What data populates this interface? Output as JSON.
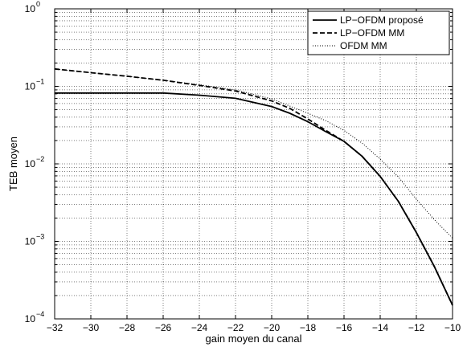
{
  "chart_data": {
    "type": "line",
    "xlabel": "gain moyen du canal",
    "ylabel": "TEB moyen",
    "xlim": [
      -32,
      -10
    ],
    "ylim": [
      0.0001,
      1
    ],
    "yscale": "log",
    "grid": true,
    "minor_grid": true,
    "legend_position": "top-right",
    "x_ticks": [
      -32,
      -30,
      -28,
      -26,
      -24,
      -22,
      -20,
      -18,
      -16,
      -14,
      -12,
      -10
    ],
    "x_tick_labels": [
      "−32",
      "−30",
      "−28",
      "−26",
      "−24",
      "−22",
      "−20",
      "−18",
      "−16",
      "−14",
      "−12",
      "−10"
    ],
    "y_ticks": [
      0.0001,
      0.001,
      0.01,
      0.1,
      1
    ],
    "y_tick_labels": [
      {
        "base": "10",
        "exp": "−4"
      },
      {
        "base": "10",
        "exp": "−3"
      },
      {
        "base": "10",
        "exp": "−2"
      },
      {
        "base": "10",
        "exp": "−1"
      },
      {
        "base": "10",
        "exp": "0"
      }
    ],
    "series": [
      {
        "name": "LP−OFDM proposé",
        "style": "solid",
        "x": [
          -32,
          -30,
          -28,
          -26,
          -24,
          -22,
          -20,
          -19,
          -18,
          -17,
          -16,
          -15,
          -14,
          -13,
          -12,
          -11,
          -10
        ],
        "y": [
          0.082,
          0.082,
          0.082,
          0.082,
          0.077,
          0.07,
          0.055,
          0.045,
          0.035,
          0.026,
          0.0195,
          0.0125,
          0.0069,
          0.0033,
          0.0013,
          0.00047,
          0.00015
        ]
      },
      {
        "name": "LP−OFDM MM",
        "style": "dashed",
        "x": [
          -32,
          -30,
          -28,
          -26,
          -24,
          -22,
          -20,
          -19,
          -18,
          -17,
          -16,
          -15,
          -14,
          -13,
          -12,
          -11,
          -10
        ],
        "y": [
          0.168,
          0.15,
          0.135,
          0.12,
          0.103,
          0.087,
          0.065,
          0.052,
          0.038,
          0.027,
          0.0195,
          0.0125,
          0.0069,
          0.0033,
          0.0013,
          0.00047,
          0.00015
        ]
      },
      {
        "name": "OFDM MM",
        "style": "dotted",
        "x": [
          -32,
          -30,
          -28,
          -26,
          -24,
          -22,
          -20,
          -18,
          -17,
          -16,
          -15,
          -14,
          -13,
          -12,
          -11,
          -10
        ],
        "y": [
          0.168,
          0.15,
          0.135,
          0.12,
          0.105,
          0.09,
          0.069,
          0.045,
          0.036,
          0.027,
          0.0185,
          0.0115,
          0.0068,
          0.0035,
          0.0019,
          0.0011
        ]
      }
    ]
  }
}
